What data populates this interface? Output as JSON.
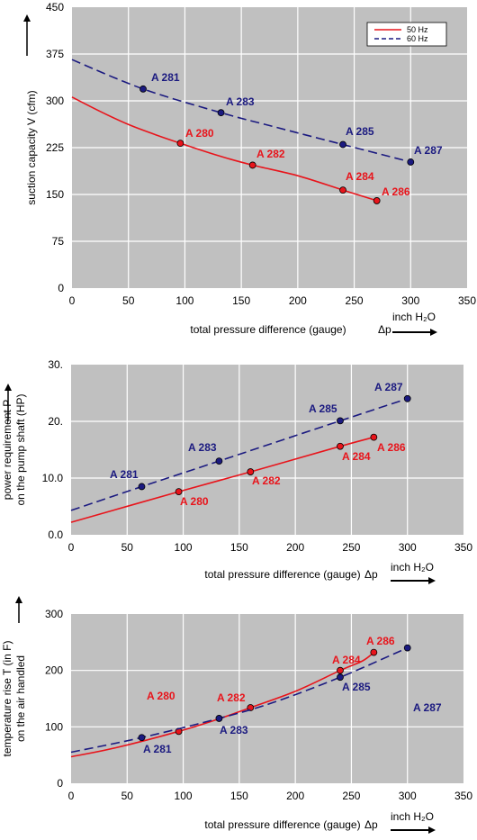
{
  "chart_data": [
    {
      "type": "line",
      "xlim": [
        0,
        350
      ],
      "ylim": [
        0,
        450
      ],
      "xticks": [
        "0",
        "50",
        "100",
        "150",
        "200",
        "250",
        "300",
        "350"
      ],
      "yticks": [
        "0",
        "75",
        "150",
        "225",
        "300",
        "375",
        "450"
      ],
      "xlabel": "total pressure difference (gauge)",
      "xlabel_symbol": "Δp",
      "xunit": "inch H₂O",
      "ylabel": "suction capacity V (cfm)",
      "grid": true,
      "legend": {
        "placement": "top-right",
        "entries": [
          "50 Hz",
          "60 Hz"
        ]
      },
      "series": [
        {
          "name": "50 Hz",
          "color": "#e8141b",
          "dash": "solid",
          "curve": [
            [
              0,
              306
            ],
            [
              25,
              283
            ],
            [
              50,
              262
            ],
            [
              75,
              245
            ],
            [
              96,
              232
            ],
            [
              130,
              212
            ],
            [
              160,
              197
            ],
            [
              200,
              180
            ],
            [
              240,
              157
            ],
            [
              270,
              140
            ]
          ],
          "points": [
            {
              "label": "A 280",
              "x": 96,
              "y": 232
            },
            {
              "label": "A 282",
              "x": 160,
              "y": 197
            },
            {
              "label": "A 284",
              "x": 240,
              "y": 157
            },
            {
              "label": "A 286",
              "x": 270,
              "y": 140
            }
          ]
        },
        {
          "name": "60 Hz",
          "color": "#1b1a80",
          "dash": "dashed",
          "curve": [
            [
              0,
              366
            ],
            [
              63,
              319
            ],
            [
              132,
              281
            ],
            [
              180,
              258
            ],
            [
              240,
              230
            ],
            [
              300,
              202
            ]
          ],
          "points": [
            {
              "label": "A 281",
              "x": 63,
              "y": 319
            },
            {
              "label": "A 283",
              "x": 132,
              "y": 281
            },
            {
              "label": "A 285",
              "x": 240,
              "y": 230
            },
            {
              "label": "A 287",
              "x": 300,
              "y": 202
            }
          ]
        }
      ]
    },
    {
      "type": "line",
      "xlim": [
        0,
        350
      ],
      "ylim": [
        0,
        30
      ],
      "xticks": [
        "0",
        "50",
        "100",
        "150",
        "200",
        "250",
        "300",
        "350"
      ],
      "yticks": [
        "0.0",
        "10.0",
        "20.",
        "30."
      ],
      "xlabel": "total pressure difference (gauge)",
      "xlabel_symbol": "Δp",
      "xunit": "inch H₂O",
      "ylabel": [
        "power requirement P",
        "on the pump shaft (HP)"
      ],
      "grid": true,
      "series": [
        {
          "color": "#e8141b",
          "dash": "solid",
          "curve": [
            [
              0,
              2.2
            ],
            [
              96,
              7.6
            ],
            [
              160,
              11.1
            ],
            [
              240,
              15.6
            ],
            [
              270,
              17.2
            ]
          ],
          "points": [
            {
              "label": "A 280",
              "x": 96,
              "y": 7.6
            },
            {
              "label": "A 282",
              "x": 160,
              "y": 11.1
            },
            {
              "label": "A 284",
              "x": 240,
              "y": 15.6
            },
            {
              "label": "A 286",
              "x": 270,
              "y": 17.2
            }
          ]
        },
        {
          "color": "#1b1a80",
          "dash": "dashed",
          "curve": [
            [
              0,
              4.3
            ],
            [
              63,
              8.5
            ],
            [
              132,
              13.0
            ],
            [
              240,
              20.1
            ],
            [
              300,
              24.0
            ]
          ],
          "points": [
            {
              "label": "A 281",
              "x": 63,
              "y": 8.5
            },
            {
              "label": "A 283",
              "x": 132,
              "y": 13.0
            },
            {
              "label": "A 285",
              "x": 240,
              "y": 20.1
            },
            {
              "label": "A 287",
              "x": 300,
              "y": 24.0
            }
          ]
        }
      ]
    },
    {
      "type": "line",
      "xlim": [
        0,
        350
      ],
      "ylim": [
        0,
        300
      ],
      "xticks": [
        "0",
        "50",
        "100",
        "150",
        "200",
        "250",
        "300",
        "350"
      ],
      "yticks": [
        "0",
        "100",
        "200",
        "300"
      ],
      "xlabel": "total pressure difference (gauge)",
      "xlabel_symbol": "Δp",
      "xunit": "inch H₂O",
      "ylabel": [
        "temperature rise    T   (in F)",
        "on the air handled"
      ],
      "grid": true,
      "series": [
        {
          "color": "#e8141b",
          "dash": "solid",
          "curve": [
            [
              0,
              47
            ],
            [
              40,
              63
            ],
            [
              96,
              92
            ],
            [
              130,
              113
            ],
            [
              160,
              134
            ],
            [
              200,
              163
            ],
            [
              240,
              200
            ],
            [
              260,
              217
            ],
            [
              270,
              232
            ]
          ],
          "points": [
            {
              "label": "A 280",
              "x": 96,
              "y": 92
            },
            {
              "label": "A 282",
              "x": 160,
              "y": 134
            },
            {
              "label": "A 284",
              "x": 240,
              "y": 200
            },
            {
              "label": "A 286",
              "x": 270,
              "y": 232
            }
          ]
        },
        {
          "color": "#1b1a80",
          "dash": "dashed",
          "curve": [
            [
              0,
              55
            ],
            [
              63,
              81
            ],
            [
              132,
              115
            ],
            [
              180,
              143
            ],
            [
              240,
              188
            ],
            [
              300,
              240
            ]
          ],
          "points": [
            {
              "label": "A 281",
              "x": 63,
              "y": 81
            },
            {
              "label": "A 283",
              "x": 132,
              "y": 115
            },
            {
              "label": "A 285",
              "x": 240,
              "y": 188
            },
            {
              "label": "A 287",
              "x": 300,
              "y": 240
            }
          ]
        }
      ]
    }
  ]
}
